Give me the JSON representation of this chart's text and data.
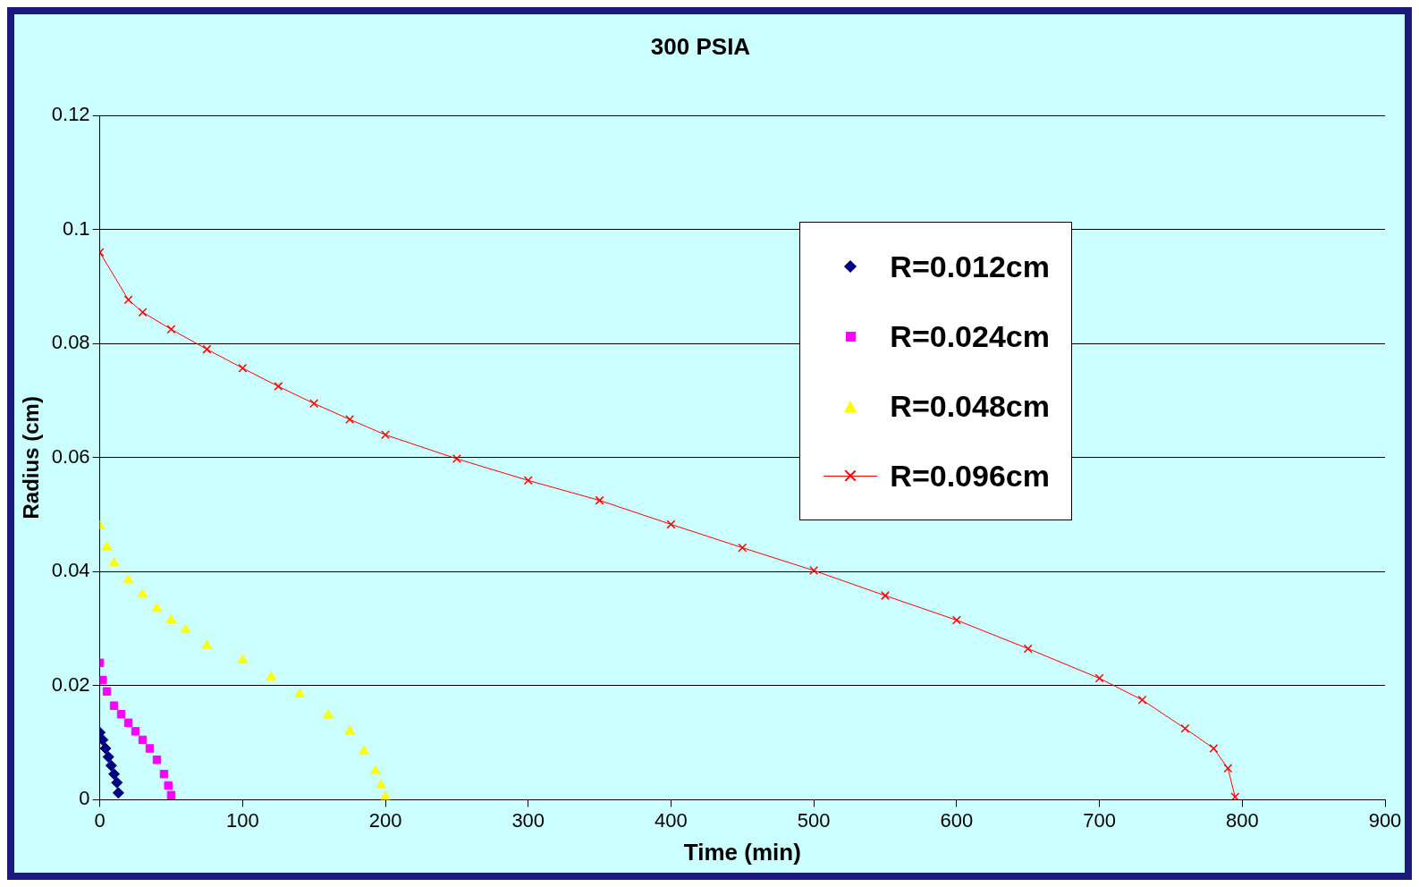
{
  "chart_data": {
    "type": "scatter",
    "title": "300 PSIA",
    "xlabel": "Time (min)",
    "ylabel": "Radius (cm)",
    "xlim": [
      0,
      900
    ],
    "xticks": [
      0,
      100,
      200,
      300,
      400,
      500,
      600,
      700,
      800,
      900
    ],
    "ylim": [
      0,
      0.12
    ],
    "yticks": [
      0,
      0.02,
      0.04,
      0.06,
      0.08,
      0.1,
      0.12
    ],
    "grid": "y",
    "legend": "top right",
    "series": [
      {
        "name": "R=0.012cm",
        "type": "scatter",
        "marker": "diamond",
        "color": "#000080",
        "x": [
          0,
          2,
          4,
          6,
          8,
          10,
          12,
          13
        ],
        "values": [
          0.0118,
          0.0105,
          0.009,
          0.0075,
          0.006,
          0.0045,
          0.003,
          0.0012
        ]
      },
      {
        "name": "R=0.024cm",
        "type": "scatter",
        "marker": "square",
        "color": "#ff00ff",
        "x": [
          0,
          2,
          5,
          10,
          15,
          20,
          25,
          30,
          35,
          40,
          45,
          48,
          50
        ],
        "values": [
          0.024,
          0.021,
          0.019,
          0.0165,
          0.015,
          0.0135,
          0.012,
          0.0105,
          0.009,
          0.007,
          0.0045,
          0.0025,
          0.0008
        ]
      },
      {
        "name": "R=0.048cm",
        "type": "scatter",
        "marker": "triangle",
        "color": "#ffff00",
        "x": [
          0,
          5,
          10,
          20,
          30,
          40,
          50,
          60,
          75,
          100,
          120,
          140,
          160,
          175,
          185,
          193,
          197,
          200
        ],
        "values": [
          0.048,
          0.0443,
          0.0415,
          0.0385,
          0.036,
          0.0335,
          0.0315,
          0.0298,
          0.027,
          0.0245,
          0.0215,
          0.0185,
          0.0148,
          0.012,
          0.0085,
          0.005,
          0.0025,
          0.0005
        ]
      },
      {
        "name": "R=0.096cm",
        "type": "line",
        "marker": "cross",
        "color": "#ff0000",
        "x": [
          0,
          20,
          30,
          50,
          75,
          100,
          125,
          150,
          175,
          200,
          250,
          300,
          350,
          400,
          450,
          500,
          550,
          600,
          650,
          700,
          730,
          760,
          780,
          790,
          795
        ],
        "values": [
          0.096,
          0.0877,
          0.0855,
          0.0825,
          0.079,
          0.0757,
          0.0725,
          0.0695,
          0.0667,
          0.064,
          0.0598,
          0.056,
          0.0525,
          0.0483,
          0.0442,
          0.0402,
          0.0358,
          0.0315,
          0.0265,
          0.0213,
          0.0175,
          0.0125,
          0.009,
          0.0055,
          0.0005
        ]
      }
    ]
  }
}
